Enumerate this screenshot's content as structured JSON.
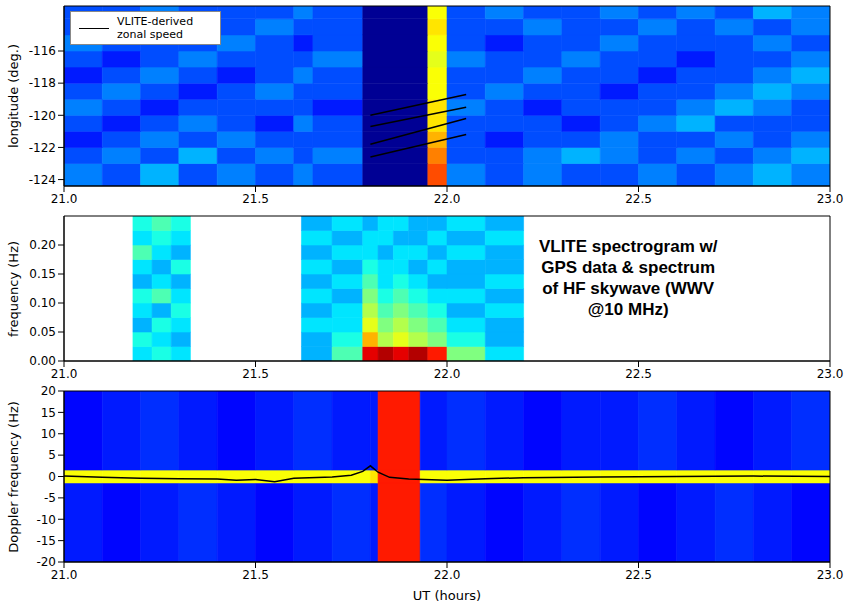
{
  "chart_data": [
    {
      "type": "heatmap",
      "ylabel": "longitude (deg.)",
      "xlim": [
        21,
        23
      ],
      "xticks": [
        {
          "value": 21,
          "label": "21.0"
        },
        21.5,
        {
          "value": 22,
          "label": "22.0"
        },
        22.5,
        {
          "value": 23,
          "label": "23.0"
        }
      ],
      "ylim": [
        -124.4,
        -113.2
      ],
      "yticks": [
        -124,
        -122,
        -120,
        -118,
        -116
      ],
      "zlim": [
        0,
        1
      ],
      "cells": [
        {
          "x_edges": [
            21.0,
            21.1,
            21.2,
            21.3,
            21.4,
            21.5,
            21.6,
            21.65,
            21.78,
            21.95,
            22.0,
            22.1,
            22.2,
            22.3,
            22.4,
            22.5,
            22.6,
            22.7,
            22.8,
            22.9,
            23.0
          ],
          "y_edges": [
            -124.4,
            -123,
            -122,
            -121,
            -120,
            -119,
            -118,
            -117,
            -116,
            -115,
            -114,
            -113.2
          ],
          "values": [
            [
              0.25,
              0.2,
              0.3,
              0.2,
              0.25,
              0.2,
              0.25,
              0.2,
              0.02,
              0.8,
              0.25,
              0.2,
              0.25,
              0.2,
              0.2,
              0.25,
              0.2,
              0.25,
              0.3,
              0.25
            ],
            [
              0.2,
              0.25,
              0.2,
              0.3,
              0.2,
              0.25,
              0.2,
              0.25,
              0.02,
              0.75,
              0.2,
              0.2,
              0.25,
              0.3,
              0.25,
              0.2,
              0.25,
              0.2,
              0.25,
              0.3
            ],
            [
              0.15,
              0.2,
              0.25,
              0.2,
              0.25,
              0.2,
              0.2,
              0.2,
              0.02,
              0.7,
              0.2,
              0.15,
              0.2,
              0.2,
              0.25,
              0.2,
              0.2,
              0.25,
              0.2,
              0.25
            ],
            [
              0.2,
              0.15,
              0.2,
              0.25,
              0.2,
              0.15,
              0.25,
              0.2,
              0.02,
              0.65,
              0.2,
              0.2,
              0.2,
              0.15,
              0.2,
              0.25,
              0.3,
              0.2,
              0.2,
              0.2
            ],
            [
              0.25,
              0.2,
              0.15,
              0.2,
              0.2,
              0.2,
              0.2,
              0.15,
              0.02,
              0.65,
              0.25,
              0.2,
              0.15,
              0.2,
              0.2,
              0.2,
              0.25,
              0.3,
              0.25,
              0.2
            ],
            [
              0.2,
              0.25,
              0.2,
              0.15,
              0.2,
              0.25,
              0.2,
              0.2,
              0.02,
              0.62,
              0.2,
              0.25,
              0.2,
              0.2,
              0.15,
              0.2,
              0.2,
              0.25,
              0.3,
              0.25
            ],
            [
              0.15,
              0.2,
              0.25,
              0.2,
              0.15,
              0.2,
              0.25,
              0.2,
              0.02,
              0.62,
              0.2,
              0.2,
              0.25,
              0.2,
              0.2,
              0.15,
              0.2,
              0.2,
              0.25,
              0.3
            ],
            [
              0.2,
              0.15,
              0.2,
              0.25,
              0.2,
              0.2,
              0.2,
              0.25,
              0.02,
              0.6,
              0.25,
              0.2,
              0.2,
              0.25,
              0.2,
              0.2,
              0.15,
              0.2,
              0.2,
              0.25
            ],
            [
              0.25,
              0.2,
              0.2,
              0.2,
              0.25,
              0.2,
              0.15,
              0.2,
              0.02,
              0.62,
              0.2,
              0.15,
              0.2,
              0.2,
              0.25,
              0.2,
              0.2,
              0.2,
              0.25,
              0.2
            ],
            [
              0.2,
              0.25,
              0.2,
              0.15,
              0.2,
              0.25,
              0.2,
              0.2,
              0.02,
              0.65,
              0.2,
              0.2,
              0.25,
              0.2,
              0.2,
              0.25,
              0.2,
              0.25,
              0.2,
              0.25
            ],
            [
              0.2,
              0.2,
              0.25,
              0.2,
              0.2,
              0.2,
              0.25,
              0.2,
              0.02,
              0.62,
              0.2,
              0.25,
              0.2,
              0.2,
              0.25,
              0.2,
              0.25,
              0.2,
              0.3,
              0.25
            ]
          ]
        }
      ],
      "series": [
        {
          "name": "VLITE-derived zonal speed",
          "type": "line",
          "color": "#000000",
          "lines": [
            {
              "x": [
                21.8,
                22.05
              ],
              "values": [
                -120.0,
                -118.7
              ]
            },
            {
              "x": [
                21.8,
                22.05
              ],
              "values": [
                -120.7,
                -119.5
              ]
            },
            {
              "x": [
                21.8,
                22.05
              ],
              "values": [
                -121.8,
                -120.2
              ]
            },
            {
              "x": [
                21.8,
                22.05
              ],
              "values": [
                -122.6,
                -121.2
              ]
            }
          ]
        }
      ],
      "legend": "upper left"
    },
    {
      "type": "heatmap",
      "ylabel": "frequency (Hz)",
      "annotation": "VLITE spectrogram w/ GPS data & spectrum of HF skywave (WWV @10 MHz)",
      "xlim": [
        21,
        23
      ],
      "xticks": [
        {
          "value": 21,
          "label": "21.0"
        },
        21.5,
        {
          "value": 22,
          "label": "22.0"
        },
        22.5,
        {
          "value": 23,
          "label": "23.0"
        }
      ],
      "ylim": [
        0,
        0.25
      ],
      "yticks": [
        {
          "value": 0,
          "label": "0.00"
        },
        0.05,
        {
          "value": 0.1,
          "label": "0.10"
        },
        0.15,
        {
          "value": 0.2,
          "label": "0.20"
        }
      ],
      "zlim": [
        0,
        1
      ],
      "cells": [
        {
          "x_edges": [
            21.18,
            21.23,
            21.28,
            21.33
          ],
          "y_edges": [
            0,
            0.025,
            0.05,
            0.075,
            0.1,
            0.125,
            0.15,
            0.175,
            0.2,
            0.225,
            0.25
          ],
          "values": [
            [
              0.35,
              0.4,
              0.35
            ],
            [
              0.4,
              0.35,
              0.3
            ],
            [
              0.3,
              0.4,
              0.35
            ],
            [
              0.35,
              0.3,
              0.4
            ],
            [
              0.4,
              0.45,
              0.35
            ],
            [
              0.3,
              0.35,
              0.3
            ],
            [
              0.35,
              0.3,
              0.4
            ],
            [
              0.45,
              0.35,
              0.3
            ],
            [
              0.35,
              0.4,
              0.35
            ],
            [
              0.4,
              0.45,
              0.4
            ]
          ]
        },
        {
          "x_edges": [
            21.62,
            21.7,
            21.78,
            21.82,
            21.86,
            21.9,
            21.95,
            22.0,
            22.1,
            22.2
          ],
          "y_edges": [
            0,
            0.025,
            0.05,
            0.075,
            0.1,
            0.125,
            0.15,
            0.175,
            0.2,
            0.225,
            0.25
          ],
          "values": [
            [
              0.3,
              0.45,
              0.9,
              0.95,
              0.9,
              0.95,
              0.85,
              0.5,
              0.35
            ],
            [
              0.3,
              0.4,
              0.7,
              0.55,
              0.6,
              0.55,
              0.5,
              0.4,
              0.3
            ],
            [
              0.35,
              0.35,
              0.6,
              0.5,
              0.55,
              0.5,
              0.45,
              0.35,
              0.3
            ],
            [
              0.3,
              0.35,
              0.55,
              0.45,
              0.5,
              0.45,
              0.4,
              0.3,
              0.35
            ],
            [
              0.35,
              0.3,
              0.5,
              0.4,
              0.45,
              0.4,
              0.35,
              0.35,
              0.3
            ],
            [
              0.3,
              0.35,
              0.45,
              0.35,
              0.4,
              0.35,
              0.3,
              0.3,
              0.35
            ],
            [
              0.35,
              0.3,
              0.4,
              0.35,
              0.35,
              0.3,
              0.35,
              0.3,
              0.3
            ],
            [
              0.3,
              0.35,
              0.35,
              0.3,
              0.35,
              0.35,
              0.3,
              0.35,
              0.3
            ],
            [
              0.35,
              0.3,
              0.35,
              0.35,
              0.3,
              0.3,
              0.35,
              0.3,
              0.35
            ],
            [
              0.3,
              0.35,
              0.3,
              0.35,
              0.35,
              0.3,
              0.3,
              0.35,
              0.3
            ]
          ]
        }
      ]
    },
    {
      "type": "heatmap",
      "xlabel": "UT (hours)",
      "ylabel": "Doppler frequency (Hz)",
      "xlim": [
        21,
        23
      ],
      "xticks": [
        {
          "value": 21,
          "label": "21.0"
        },
        21.5,
        {
          "value": 22,
          "label": "22.0"
        },
        22.5,
        {
          "value": 23,
          "label": "23.0"
        }
      ],
      "ylim": [
        -20,
        20
      ],
      "yticks": [
        -20,
        -15,
        -10,
        -5,
        0,
        5,
        10,
        15,
        20
      ],
      "zlim": [
        0,
        1
      ],
      "cells": [
        {
          "x_edges": [
            21.0,
            21.1,
            21.2,
            21.3,
            21.4,
            21.5,
            21.6,
            21.7,
            21.8,
            21.82,
            21.93,
            22.0,
            22.1,
            22.2,
            22.3,
            22.4,
            22.5,
            22.6,
            22.7,
            22.8,
            22.9,
            23.0
          ],
          "y_edges": [
            -20,
            -1.5,
            1.5,
            20
          ],
          "values": [
            [
              0.15,
              0.13,
              0.15,
              0.17,
              0.15,
              0.13,
              0.15,
              0.17,
              0.15,
              0.85,
              0.17,
              0.15,
              0.13,
              0.15,
              0.17,
              0.15,
              0.13,
              0.15,
              0.17,
              0.15,
              0.13
            ],
            [
              0.62,
              0.62,
              0.62,
              0.62,
              0.62,
              0.62,
              0.62,
              0.62,
              0.65,
              0.85,
              0.62,
              0.62,
              0.62,
              0.62,
              0.62,
              0.62,
              0.62,
              0.62,
              0.62,
              0.62,
              0.62
            ],
            [
              0.13,
              0.15,
              0.17,
              0.15,
              0.13,
              0.15,
              0.17,
              0.15,
              0.15,
              0.85,
              0.15,
              0.17,
              0.15,
              0.13,
              0.15,
              0.15,
              0.17,
              0.15,
              0.13,
              0.15,
              0.17
            ]
          ]
        }
      ],
      "series": [
        {
          "type": "line",
          "color": "#000000",
          "x": [
            21.0,
            21.1,
            21.2,
            21.3,
            21.4,
            21.45,
            21.5,
            21.55,
            21.6,
            21.7,
            21.75,
            21.78,
            21.8,
            21.82,
            21.85,
            21.9,
            22.0,
            22.1,
            22.2,
            22.4,
            22.6,
            22.8,
            23.0
          ],
          "values": [
            0.1,
            -0.2,
            -0.4,
            -0.5,
            -0.6,
            -0.9,
            -0.7,
            -1.2,
            -0.4,
            -0.1,
            0.3,
            1.2,
            2.5,
            1.0,
            -0.2,
            -0.6,
            -0.9,
            -0.5,
            -0.3,
            -0.1,
            0,
            0.1,
            0
          ]
        }
      ]
    }
  ]
}
